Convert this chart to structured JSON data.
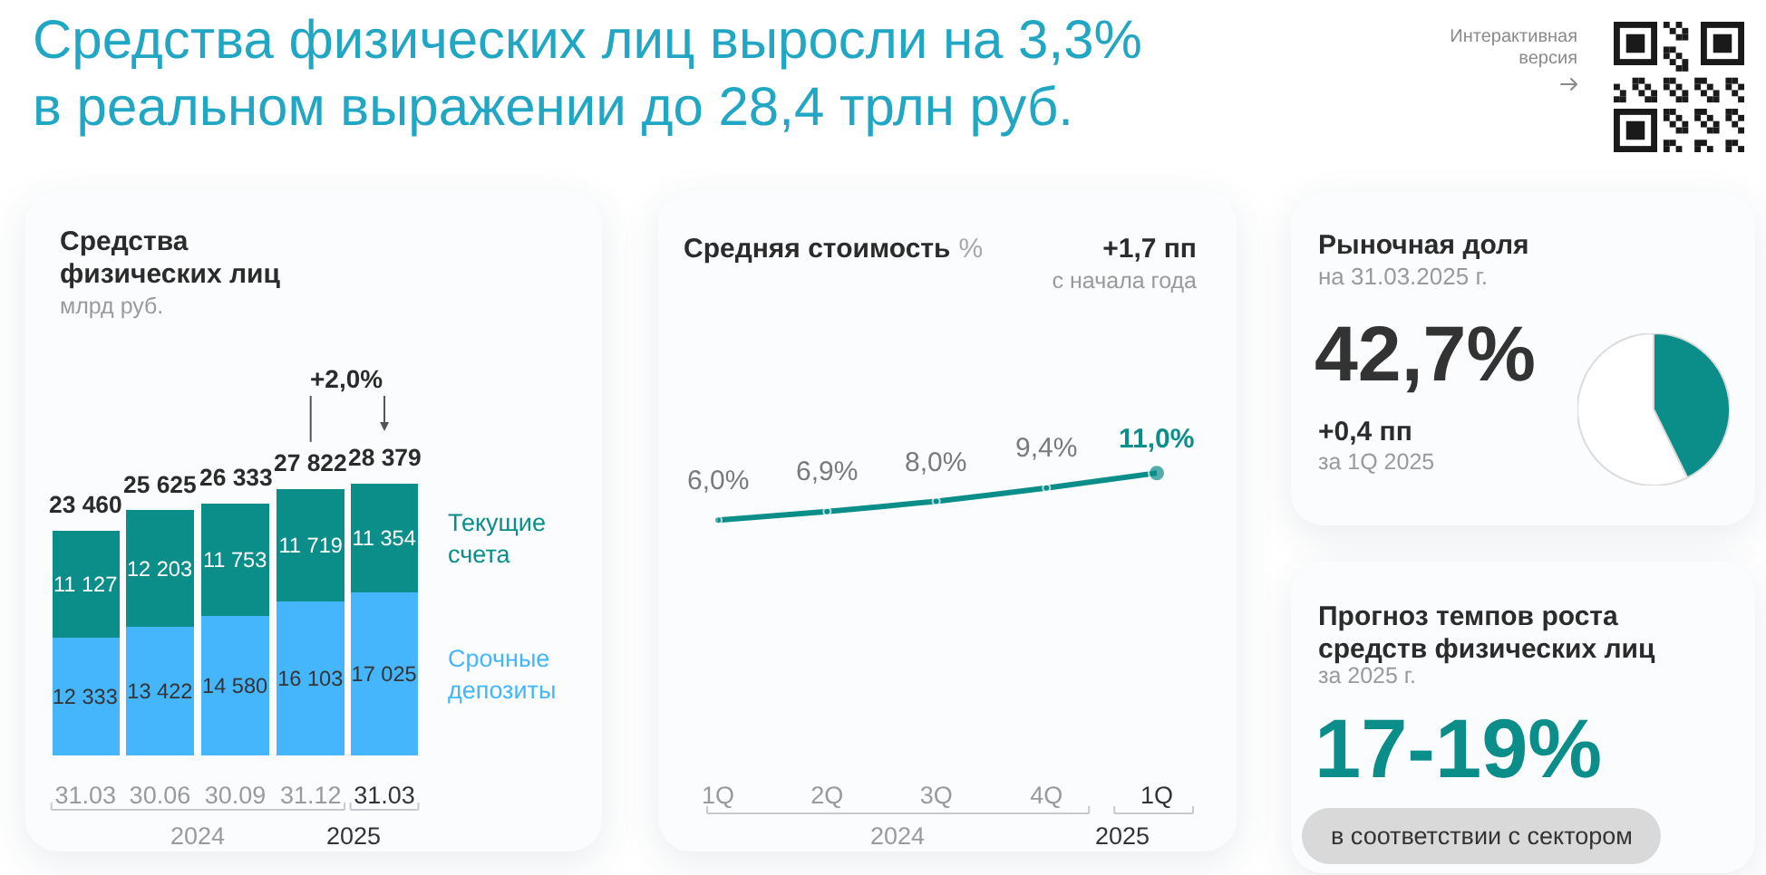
{
  "chart_data": [
    {
      "type": "other",
      "title": "Средства физических лиц выросли на 3,3% в реальном выражении до 28,4 трлн руб.",
      "annotations": [
        "Интерактивная версия"
      ]
    },
    {
      "type": "bar",
      "title": "Средства физических лиц",
      "subtitle": "млрд руб.",
      "x": [
        "2024-03-31",
        "2024-06-30",
        "2024-09-30",
        "2024-12-31",
        "2025-03-31"
      ],
      "xlim": [
        "2024-02-20",
        "2025-05-12"
      ],
      "xticks": [
        {
          "value": "2024-03-31",
          "label": "31.03"
        },
        {
          "value": "2024-06-30",
          "label": "30.06"
        },
        {
          "value": "2024-09-30",
          "label": "30.09"
        },
        {
          "value": "2024-12-31",
          "label": "31.12"
        },
        {
          "value": "2025-03-31",
          "label": "31.03"
        }
      ],
      "stacked": true,
      "tick_labels": "x",
      "series": [
        {
          "name": "Срочные депозиты",
          "color": "#45b6fc",
          "values": [
            12333,
            13422,
            14580,
            16103,
            17025
          ],
          "value_labels": [
            "12 333",
            "13 422",
            "14 580",
            "16 103",
            "17 025"
          ]
        },
        {
          "name": "Текущие счета",
          "color": "#0b8e8a",
          "values": [
            11127,
            12203,
            11753,
            11719,
            11354
          ],
          "value_labels": [
            "11 127",
            "12 203",
            "11 753",
            "11 719",
            "11 354"
          ]
        }
      ],
      "totals": [
        "23 460",
        "25 625",
        "26 333",
        "27 822",
        "28 379"
      ],
      "annotations": [
        "+2,0%",
        "2024",
        "2025"
      ]
    },
    {
      "type": "line",
      "title": "Средняя стоимость",
      "ylabel": "%",
      "x": [
        "2024-01",
        "2024-04",
        "2024-07",
        "2024-10",
        "2025-01"
      ],
      "xlim": [
        "2024-01",
        "2025-01"
      ],
      "xticks": [
        {
          "value": "2024-01",
          "label": "1Q"
        },
        {
          "value": "2024-04",
          "label": "2Q"
        },
        {
          "value": "2024-07",
          "label": "3Q"
        },
        {
          "value": "2024-10",
          "label": "4Q"
        },
        {
          "value": "2025-01",
          "label": "1Q"
        }
      ],
      "tick_labels": "x",
      "marker": "circle",
      "series": [
        {
          "color": "#0b8e8a",
          "values": [
            6.0,
            6.9,
            8.0,
            9.4,
            11.0
          ],
          "value_labels": [
            "6,0%",
            "6,9%",
            "8,0%",
            "9,4%",
            "11,0%"
          ]
        }
      ],
      "annotations": [
        "+1,7 пп",
        "с начала года",
        "2024",
        "2025"
      ]
    },
    {
      "type": "pie",
      "title": "Рыночная доля",
      "subtitle": "на 31.03.2025 г.",
      "categories": [
        null,
        null
      ],
      "values": [
        42.7,
        57.3
      ],
      "colors": [
        "#0b8e8a",
        "#ffffff"
      ],
      "annotations": [
        "42,7%",
        "+0,4 пп",
        "за 1Q 2025"
      ]
    },
    {
      "type": "other",
      "title": "Прогноз темпов роста средств физических лиц",
      "subtitle": "за 2025 г.",
      "annotations": [
        "17-19%",
        "в соответствии с сектором"
      ]
    }
  ]
}
